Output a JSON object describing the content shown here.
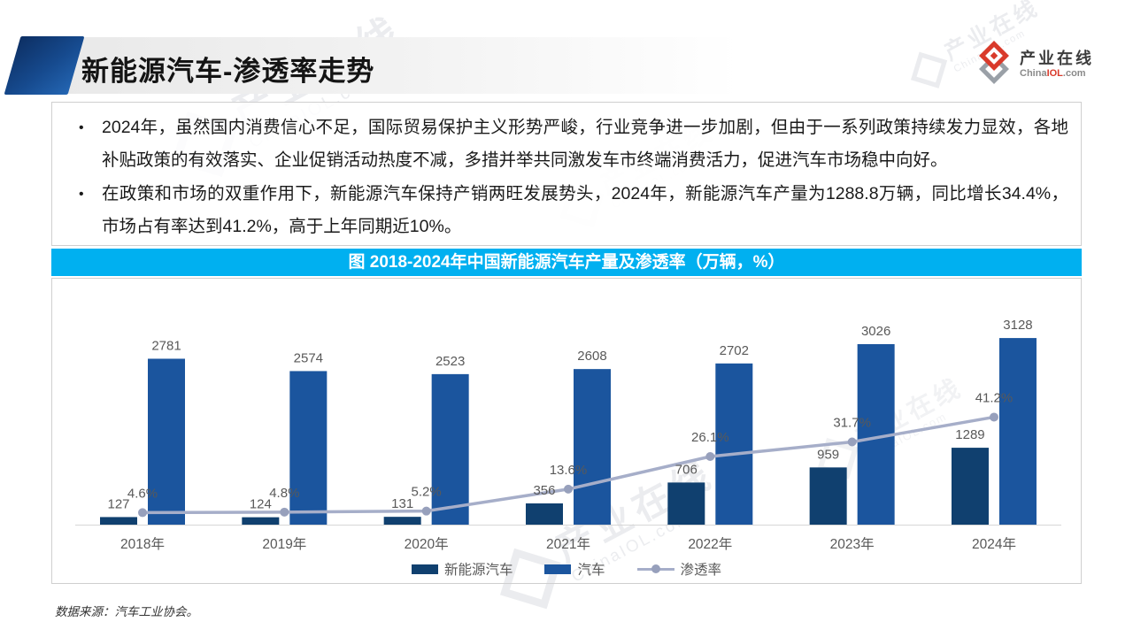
{
  "header": {
    "title": "新能源汽车-渗透率走势",
    "logo_name": "产业在线",
    "logo_domain_prefix": "China",
    "logo_domain_mid": "IOL",
    "logo_domain_suffix": ".com"
  },
  "watermark": {
    "text": "产业在线",
    "domain": "ChinaIOL.com"
  },
  "bullets": [
    "2024年，虽然国内消费信心不足，国际贸易保护主义形势严峻，行业竞争进一步加剧，但由于一系列政策持续发力显效，各地补贴政策的有效落实、企业促销活动热度不减，多措并举共同激发车市终端消费活力，促进汽车市场稳中向好。",
    "在政策和市场的双重作用下，新能源汽车保持产销两旺发展势头，2024年，新能源汽车产量为1288.8万辆，同比增长34.4%，市场占有率达到41.2%，高于上年同期近10%。"
  ],
  "chart_title": "图 2018-2024年中国新能源汽车产量及渗透率（万辆，%）",
  "source": "数据来源：汽车工业协会。",
  "colors": {
    "title_bar": "#00B0F0",
    "axis_line": "#d6d6d6",
    "label_gray": "#595959"
  },
  "chart_data": {
    "type": "bar",
    "subtype": "grouped bars with secondary-axis line",
    "title": "图 2018-2024年中国新能源汽车产量及渗透率（万辆，%）",
    "categories": [
      "2018年",
      "2019年",
      "2020年",
      "2021年",
      "2022年",
      "2023年",
      "2024年"
    ],
    "series": [
      {
        "name": "新能源汽车",
        "type": "bar",
        "color": "#10406F",
        "axis": "primary",
        "values": [
          127,
          124,
          131,
          356,
          706,
          959,
          1289
        ]
      },
      {
        "name": "汽车",
        "type": "bar",
        "color": "#1B559E",
        "axis": "primary",
        "values": [
          2781,
          2574,
          2523,
          2608,
          2702,
          3026,
          3128
        ]
      },
      {
        "name": "渗透率",
        "type": "line",
        "color": "#A6AEC9",
        "marker_color": "#97A0BC",
        "axis": "secondary",
        "unit": "%",
        "values": [
          4.6,
          4.8,
          5.2,
          13.6,
          26.1,
          31.7,
          41.2
        ]
      }
    ],
    "primary_axis_max": 3500,
    "secondary_axis_max": 80,
    "xlabel": "",
    "ylabel": "万辆",
    "y2label": "%",
    "grid": false,
    "legend_position": "bottom",
    "data_labels": true
  }
}
